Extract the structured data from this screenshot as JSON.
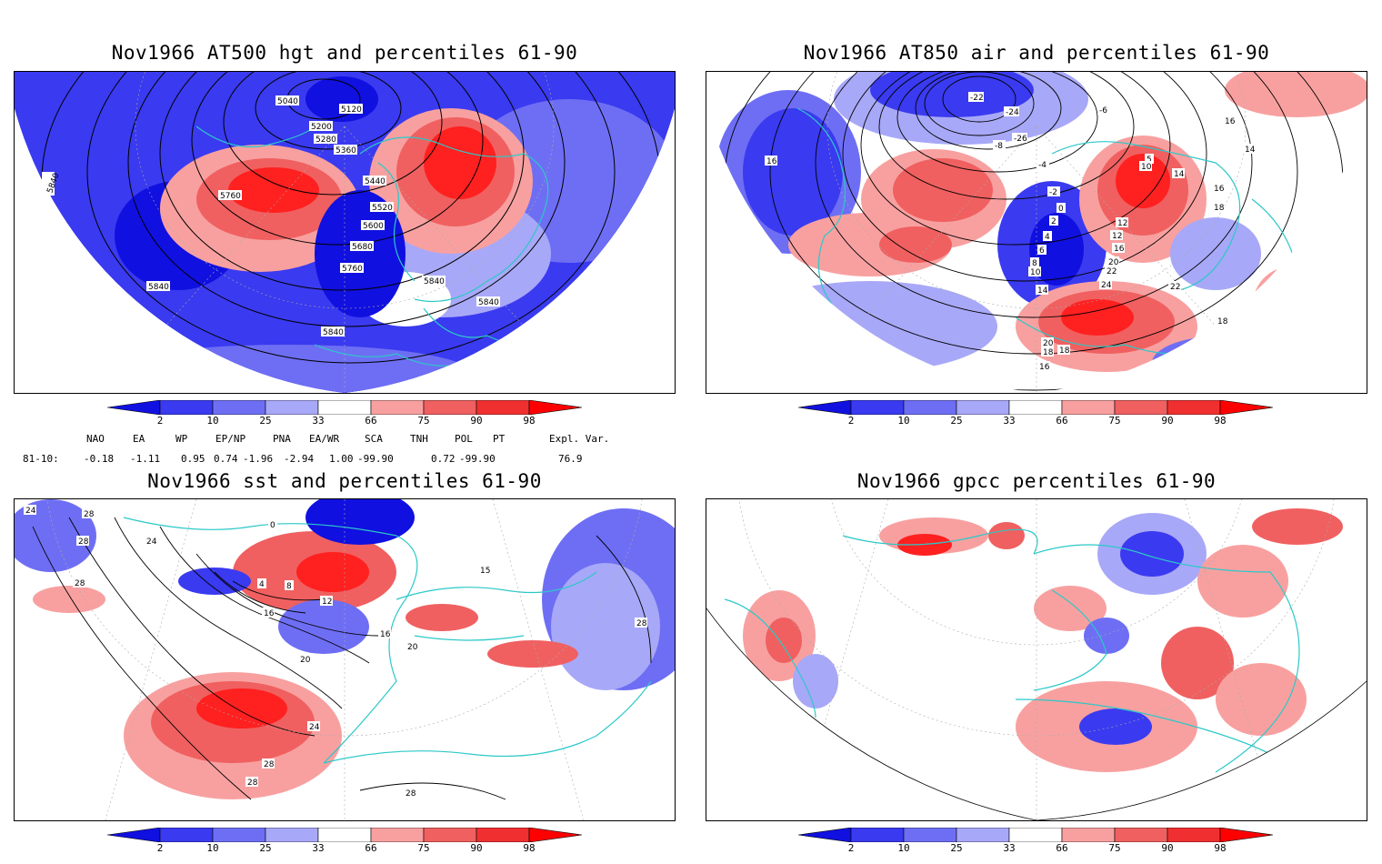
{
  "titles": {
    "hgt": "Nov1966 AT500 hgt and percentiles 61-90",
    "air": "Nov1966 AT850 air and percentiles 61-90",
    "sst": "Nov1966 sst and percentiles 61-90",
    "gpcc": "Nov1966 gpcc percentiles 61-90"
  },
  "colorbar": {
    "labels": [
      "2",
      "10",
      "25",
      "33",
      "66",
      "75",
      "90",
      "98"
    ],
    "colors": [
      "#1010e0",
      "#3a3af0",
      "#6e6ef4",
      "#a8a8f8",
      "#ffffff",
      "#f8a0a0",
      "#f06060",
      "#f03030",
      "#ff0000"
    ]
  },
  "indices": {
    "headers": [
      "NAO",
      "EA",
      "WP",
      "EP/NP",
      "PNA",
      "EA/WR",
      "SCA",
      "TNH",
      "POL",
      "PT",
      "Expl. Var."
    ],
    "row_label": "81-10:",
    "values": [
      "-0.18",
      "-1.11",
      "0.95",
      "0.74",
      "-1.96",
      "-2.94",
      "1.00",
      "-99.90",
      "0.72",
      "-99.90",
      "76.9"
    ]
  },
  "maps": {
    "hgt": {
      "contour_labels": [
        "5040",
        "5120",
        "5200",
        "5280",
        "5360",
        "5440",
        "5520",
        "5600",
        "5680",
        "5760",
        "5840",
        "5760",
        "5840",
        "5840",
        "5840",
        "5840"
      ]
    },
    "air": {
      "contour_labels": [
        "-22",
        "-24",
        "-26",
        "-8",
        "-6",
        "-4",
        "-2",
        "0",
        "2",
        "4",
        "6",
        "8",
        "10",
        "12",
        "14",
        "16",
        "18",
        "20",
        "22",
        "24",
        "16",
        "14",
        "16",
        "18",
        "14",
        "16",
        "18",
        "20",
        "18",
        "16",
        "5",
        "10",
        "12",
        "22"
      ]
    },
    "sst": {
      "contour_labels": [
        "24",
        "28",
        "24",
        "28",
        "28",
        "0",
        "4",
        "8",
        "12",
        "16",
        "20",
        "16",
        "20",
        "24",
        "28",
        "28",
        "28",
        "15",
        "28"
      ]
    },
    "gpcc": {
      "contour_labels": []
    }
  }
}
